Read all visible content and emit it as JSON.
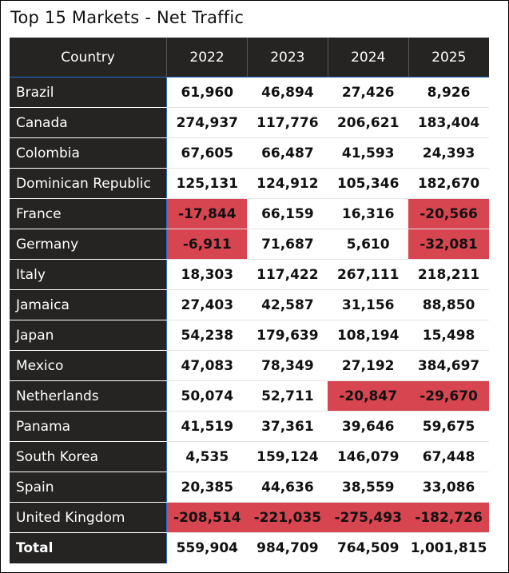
{
  "title": "Top 15 Markets - Net Traffic",
  "colors": {
    "header_bg": "#252423",
    "negative_bg": "#d64550",
    "accent_line": "#1f6fd1"
  },
  "chart_data": {
    "type": "table",
    "title": "Top 15 Markets - Net Traffic",
    "row_header": "Country",
    "columns": [
      "2022",
      "2023",
      "2024",
      "2025"
    ],
    "rows": [
      {
        "country": "Brazil",
        "values": [
          61960,
          46894,
          27426,
          8926
        ]
      },
      {
        "country": "Canada",
        "values": [
          274937,
          117776,
          206621,
          183404
        ]
      },
      {
        "country": "Colombia",
        "values": [
          67605,
          66487,
          41593,
          24393
        ]
      },
      {
        "country": "Dominican Republic",
        "values": [
          125131,
          124912,
          105346,
          182670
        ]
      },
      {
        "country": "France",
        "values": [
          -17844,
          66159,
          16316,
          -20566
        ]
      },
      {
        "country": "Germany",
        "values": [
          -6911,
          71687,
          5610,
          -32081
        ]
      },
      {
        "country": "Italy",
        "values": [
          18303,
          117422,
          267111,
          218211
        ]
      },
      {
        "country": "Jamaica",
        "values": [
          27403,
          42587,
          31156,
          88850
        ]
      },
      {
        "country": "Japan",
        "values": [
          54238,
          179639,
          108194,
          15498
        ]
      },
      {
        "country": "Mexico",
        "values": [
          47083,
          78349,
          27192,
          384697
        ]
      },
      {
        "country": "Netherlands",
        "values": [
          50074,
          52711,
          -20847,
          -29670
        ]
      },
      {
        "country": "Panama",
        "values": [
          41519,
          37361,
          39646,
          59675
        ]
      },
      {
        "country": "South Korea",
        "values": [
          4535,
          159124,
          146079,
          67448
        ]
      },
      {
        "country": "Spain",
        "values": [
          20385,
          44636,
          38559,
          33086
        ]
      },
      {
        "country": "United Kingdom",
        "values": [
          -208514,
          -221035,
          -275493,
          -182726
        ]
      }
    ],
    "total": {
      "label": "Total",
      "values": [
        559904,
        984709,
        764509,
        1001815
      ]
    },
    "conditional_format": "negative values highlighted red"
  }
}
